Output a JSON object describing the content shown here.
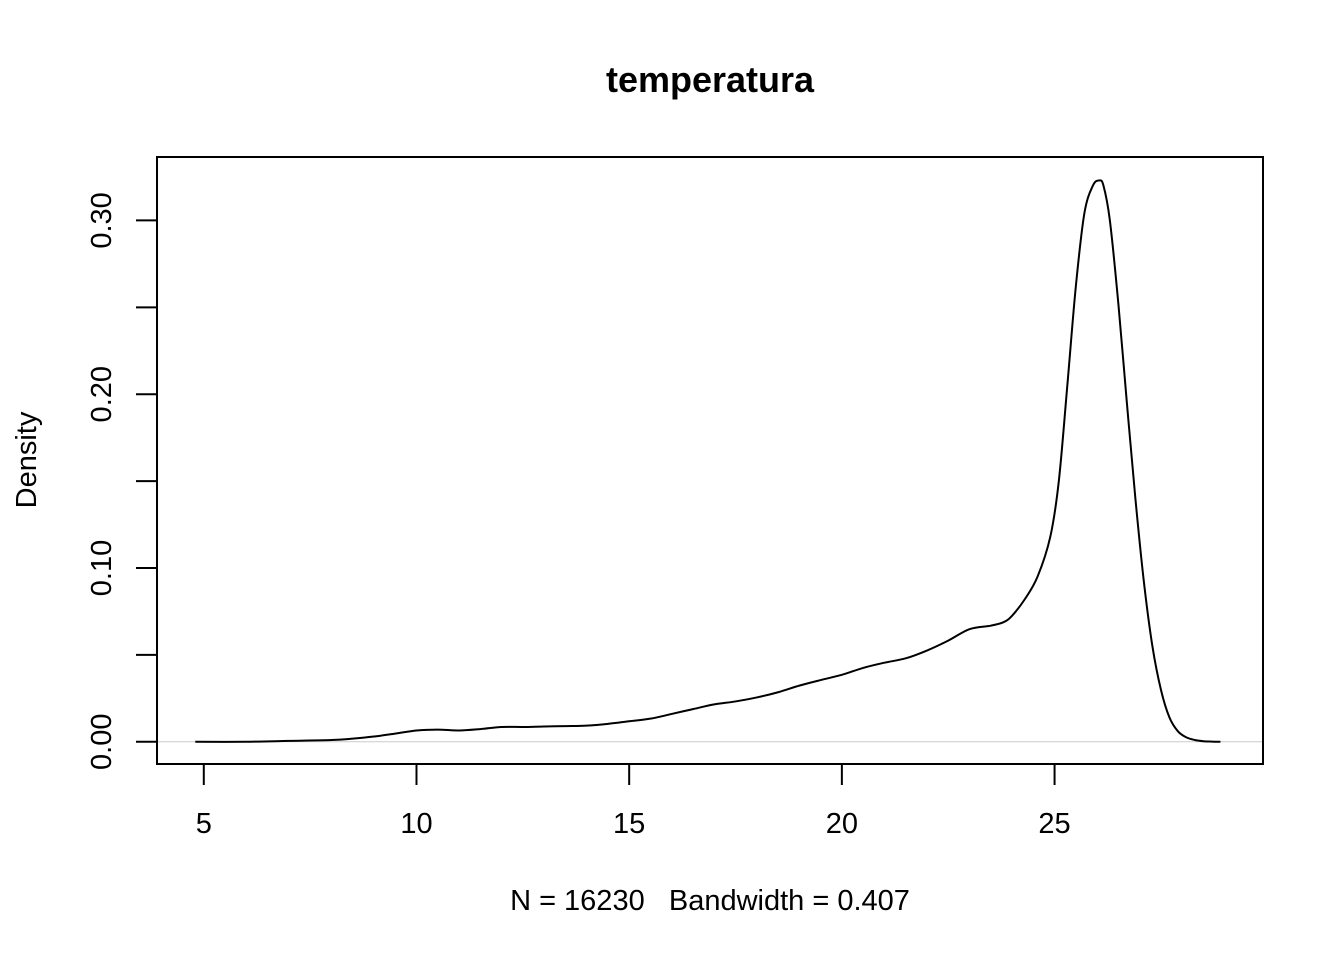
{
  "chart_data": {
    "type": "line",
    "title": "temperatura",
    "xlabel": "N = 16230   Bandwidth = 0.407",
    "ylabel": "Density",
    "xlim": [
      3.9,
      29.9
    ],
    "ylim": [
      -0.0128,
      0.3365
    ],
    "grid": false,
    "x_ticks": [
      5,
      10,
      15,
      20,
      25
    ],
    "x_tick_labels": [
      "5",
      "10",
      "15",
      "20",
      "25"
    ],
    "y_ticks": [
      0.0,
      0.05,
      0.1,
      0.15,
      0.2,
      0.25,
      0.3
    ],
    "y_tick_labels": [
      "0.00",
      "",
      "0.10",
      "",
      "0.20",
      "",
      "0.30"
    ],
    "baseline": 0,
    "series": [
      {
        "x": [
          4.8,
          6.0,
          7.0,
          8.0,
          8.5,
          9.0,
          9.5,
          10.0,
          10.5,
          11.0,
          11.5,
          12.0,
          12.5,
          13.0,
          13.5,
          14.0,
          14.5,
          15.0,
          15.5,
          16.0,
          16.5,
          17.0,
          17.5,
          18.0,
          18.5,
          19.0,
          19.5,
          20.0,
          20.5,
          21.0,
          21.5,
          22.0,
          22.5,
          23.0,
          23.5,
          23.8,
          24.0,
          24.3,
          24.6,
          24.9,
          25.1,
          25.3,
          25.5,
          25.7,
          25.9,
          26.05,
          26.15,
          26.3,
          26.5,
          26.7,
          26.9,
          27.1,
          27.3,
          27.5,
          27.7,
          27.9,
          28.1,
          28.3,
          28.5,
          28.7,
          28.9
        ],
        "y": [
          0.0,
          0.0,
          0.0005,
          0.001,
          0.0018,
          0.003,
          0.0047,
          0.0065,
          0.007,
          0.0065,
          0.0073,
          0.0085,
          0.0085,
          0.0088,
          0.009,
          0.0093,
          0.0103,
          0.0118,
          0.0133,
          0.016,
          0.0188,
          0.0215,
          0.0232,
          0.0255,
          0.0285,
          0.0323,
          0.0355,
          0.0385,
          0.0425,
          0.0455,
          0.048,
          0.0525,
          0.0582,
          0.0648,
          0.0668,
          0.0688,
          0.0725,
          0.082,
          0.095,
          0.118,
          0.15,
          0.205,
          0.262,
          0.304,
          0.32,
          0.323,
          0.32,
          0.3,
          0.252,
          0.195,
          0.14,
          0.092,
          0.055,
          0.03,
          0.014,
          0.006,
          0.0025,
          0.001,
          0.0003,
          0.0001,
          0.0
        ]
      }
    ]
  }
}
